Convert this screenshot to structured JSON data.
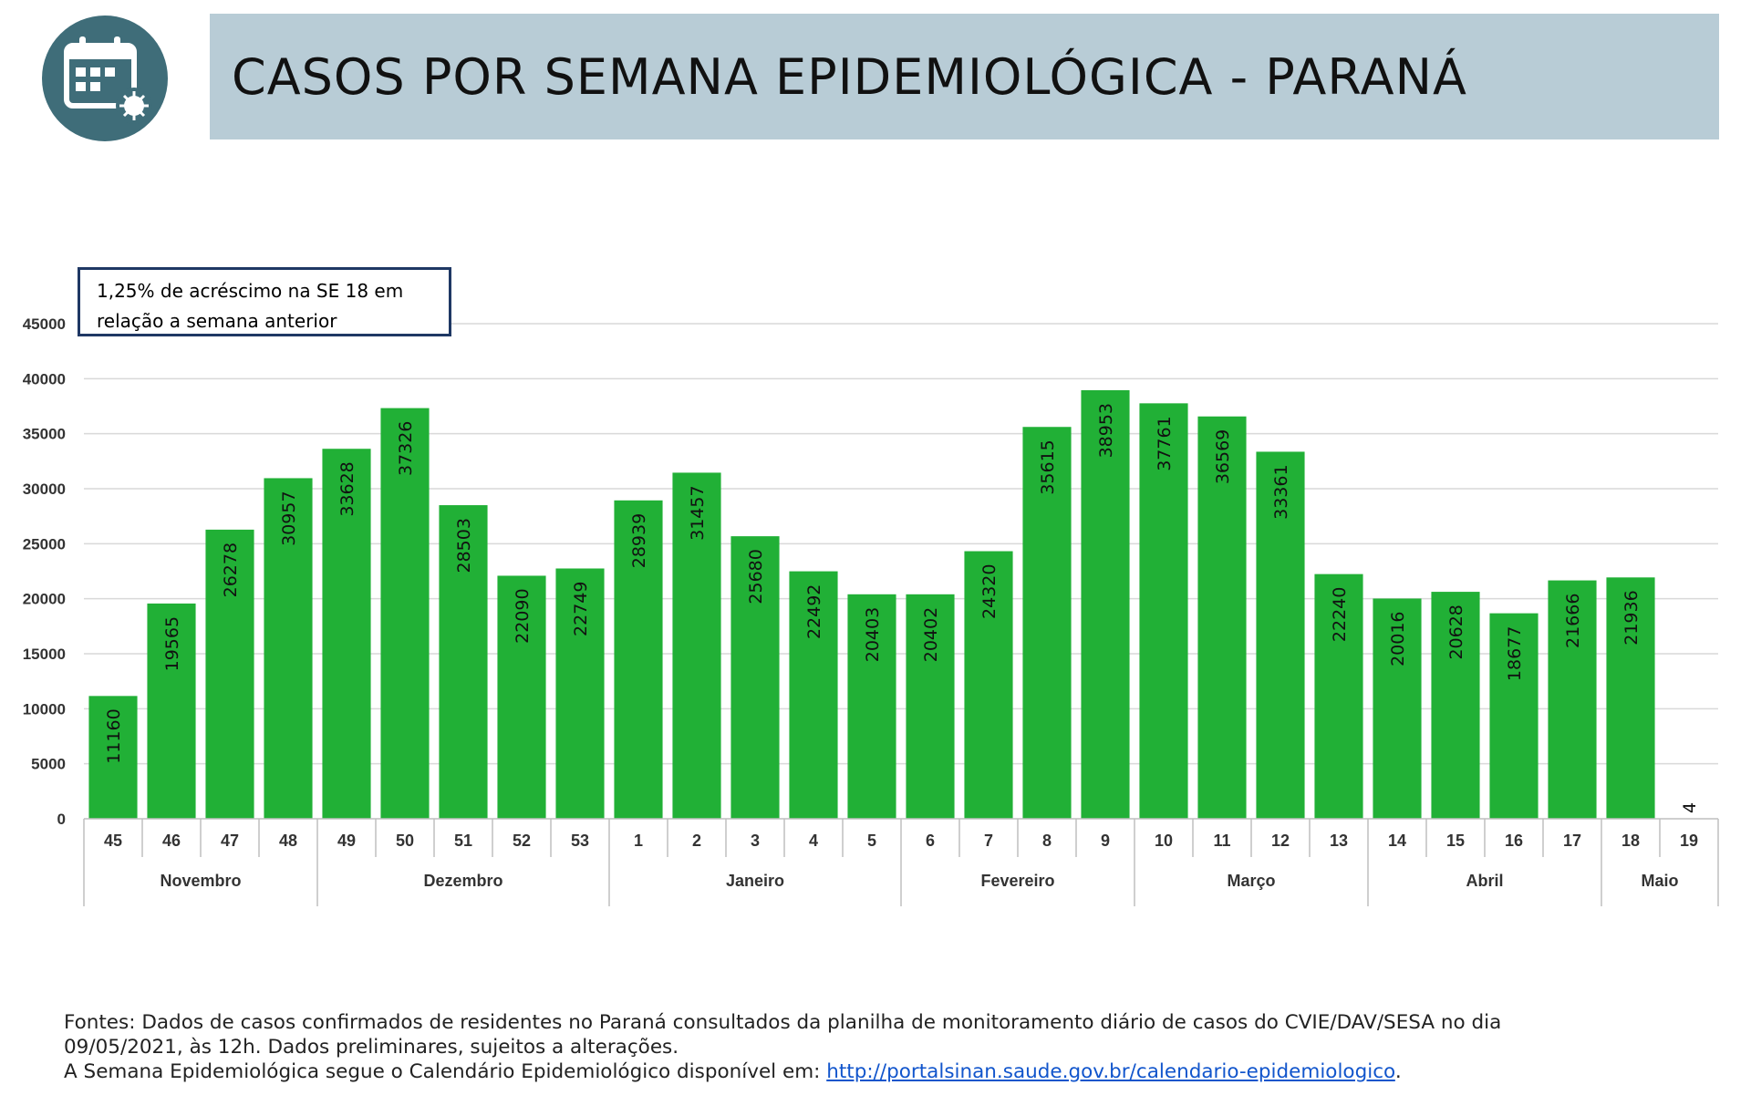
{
  "header": {
    "title": "CASOS POR SEMANA EPIDEMIOLÓGICA - PARANÁ",
    "logo_icon": "calendar-virus-icon"
  },
  "annotation": {
    "line1": "1,25% de acréscimo na SE 18 em",
    "line2": "relação a semana anterior"
  },
  "chart_data": {
    "type": "bar",
    "categories": [
      "45",
      "46",
      "47",
      "48",
      "49",
      "50",
      "51",
      "52",
      "53",
      "1",
      "2",
      "3",
      "4",
      "5",
      "6",
      "7",
      "8",
      "9",
      "10",
      "11",
      "12",
      "13",
      "14",
      "15",
      "16",
      "17",
      "18",
      "19"
    ],
    "values": [
      11160,
      19565,
      26278,
      30957,
      33628,
      37326,
      28503,
      22090,
      22749,
      28939,
      31457,
      25680,
      22492,
      20403,
      20402,
      24320,
      35615,
      38953,
      37761,
      36569,
      33361,
      22240,
      20016,
      20628,
      18677,
      21666,
      21936,
      4
    ],
    "months": [
      {
        "label": "Novembro",
        "count": 4
      },
      {
        "label": "Dezembro",
        "count": 5
      },
      {
        "label": "Janeiro",
        "count": 5
      },
      {
        "label": "Fevereiro",
        "count": 4
      },
      {
        "label": "Março",
        "count": 4
      },
      {
        "label": "Abril",
        "count": 4
      },
      {
        "label": "Maio",
        "count": 2
      }
    ],
    "yticks": [
      0,
      5000,
      10000,
      15000,
      20000,
      25000,
      30000,
      35000,
      40000,
      45000
    ],
    "ylim": [
      0,
      45000
    ],
    "grid": true,
    "bar_color": "#21b036",
    "title": "",
    "xlabel": "",
    "ylabel": ""
  },
  "footer": {
    "line1": "Fontes: Dados de casos confirmados de residentes no Paraná consultados da planilha de monitoramento diário de casos do CVIE/DAV/SESA no dia",
    "line2": "09/05/2021, às 12h. Dados preliminares, sujeitos a alterações.",
    "line3_prefix": "A Semana Epidemiológica segue o Calendário Epidemiológico disponível em: ",
    "link": "http://portalsinan.saude.gov.br/calendario-epidemiologico",
    "line3_suffix": "."
  }
}
